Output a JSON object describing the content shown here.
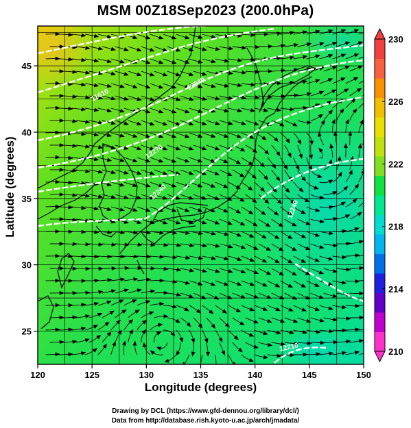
{
  "title": "MSM 00Z18Sep2023 (200.0hPa)",
  "map": {
    "xlabel": "Longitude (degrees)",
    "ylabel": "Latitude  (degrees)",
    "lon_range": [
      120,
      150
    ],
    "lat_range": [
      22.5,
      48
    ],
    "lon_ticks": [
      "120",
      "125",
      "130",
      "135",
      "140",
      "145",
      "150"
    ],
    "lat_ticks": [
      "25",
      "30",
      "35",
      "40",
      "45"
    ],
    "grid_lon": [
      120,
      122.5,
      125,
      127.5,
      130,
      132.5,
      135,
      137.5,
      140,
      142.5,
      145,
      147.5,
      150
    ],
    "grid_lat": [
      25,
      27.5,
      30,
      32.5,
      35,
      37.5,
      40,
      42.5,
      45,
      47.5
    ]
  },
  "colorbar": {
    "ticks": [
      "210",
      "214",
      "218",
      "222",
      "226",
      "230"
    ],
    "min": 210,
    "max": 230,
    "colors": [
      "#ff33cc",
      "#c000d0",
      "#6000c8",
      "#2020e0",
      "#0070e8",
      "#00b4ee",
      "#00dcd0",
      "#00e890",
      "#10e040",
      "#80e020",
      "#c0e010",
      "#e8e000",
      "#f0c000",
      "#f89000",
      "#f86040",
      "#f04040"
    ]
  },
  "contour_labels": [
    "11610",
    "12240",
    "12270",
    "12240",
    "12240",
    "12210"
  ],
  "credits": {
    "line1": "Drawing by DCL (https://www.gfd-dennou.org/library/dcl/)",
    "line2": "Data from http://database.rish.kyoto-u.ac.jp/arch/jmadata/"
  }
}
